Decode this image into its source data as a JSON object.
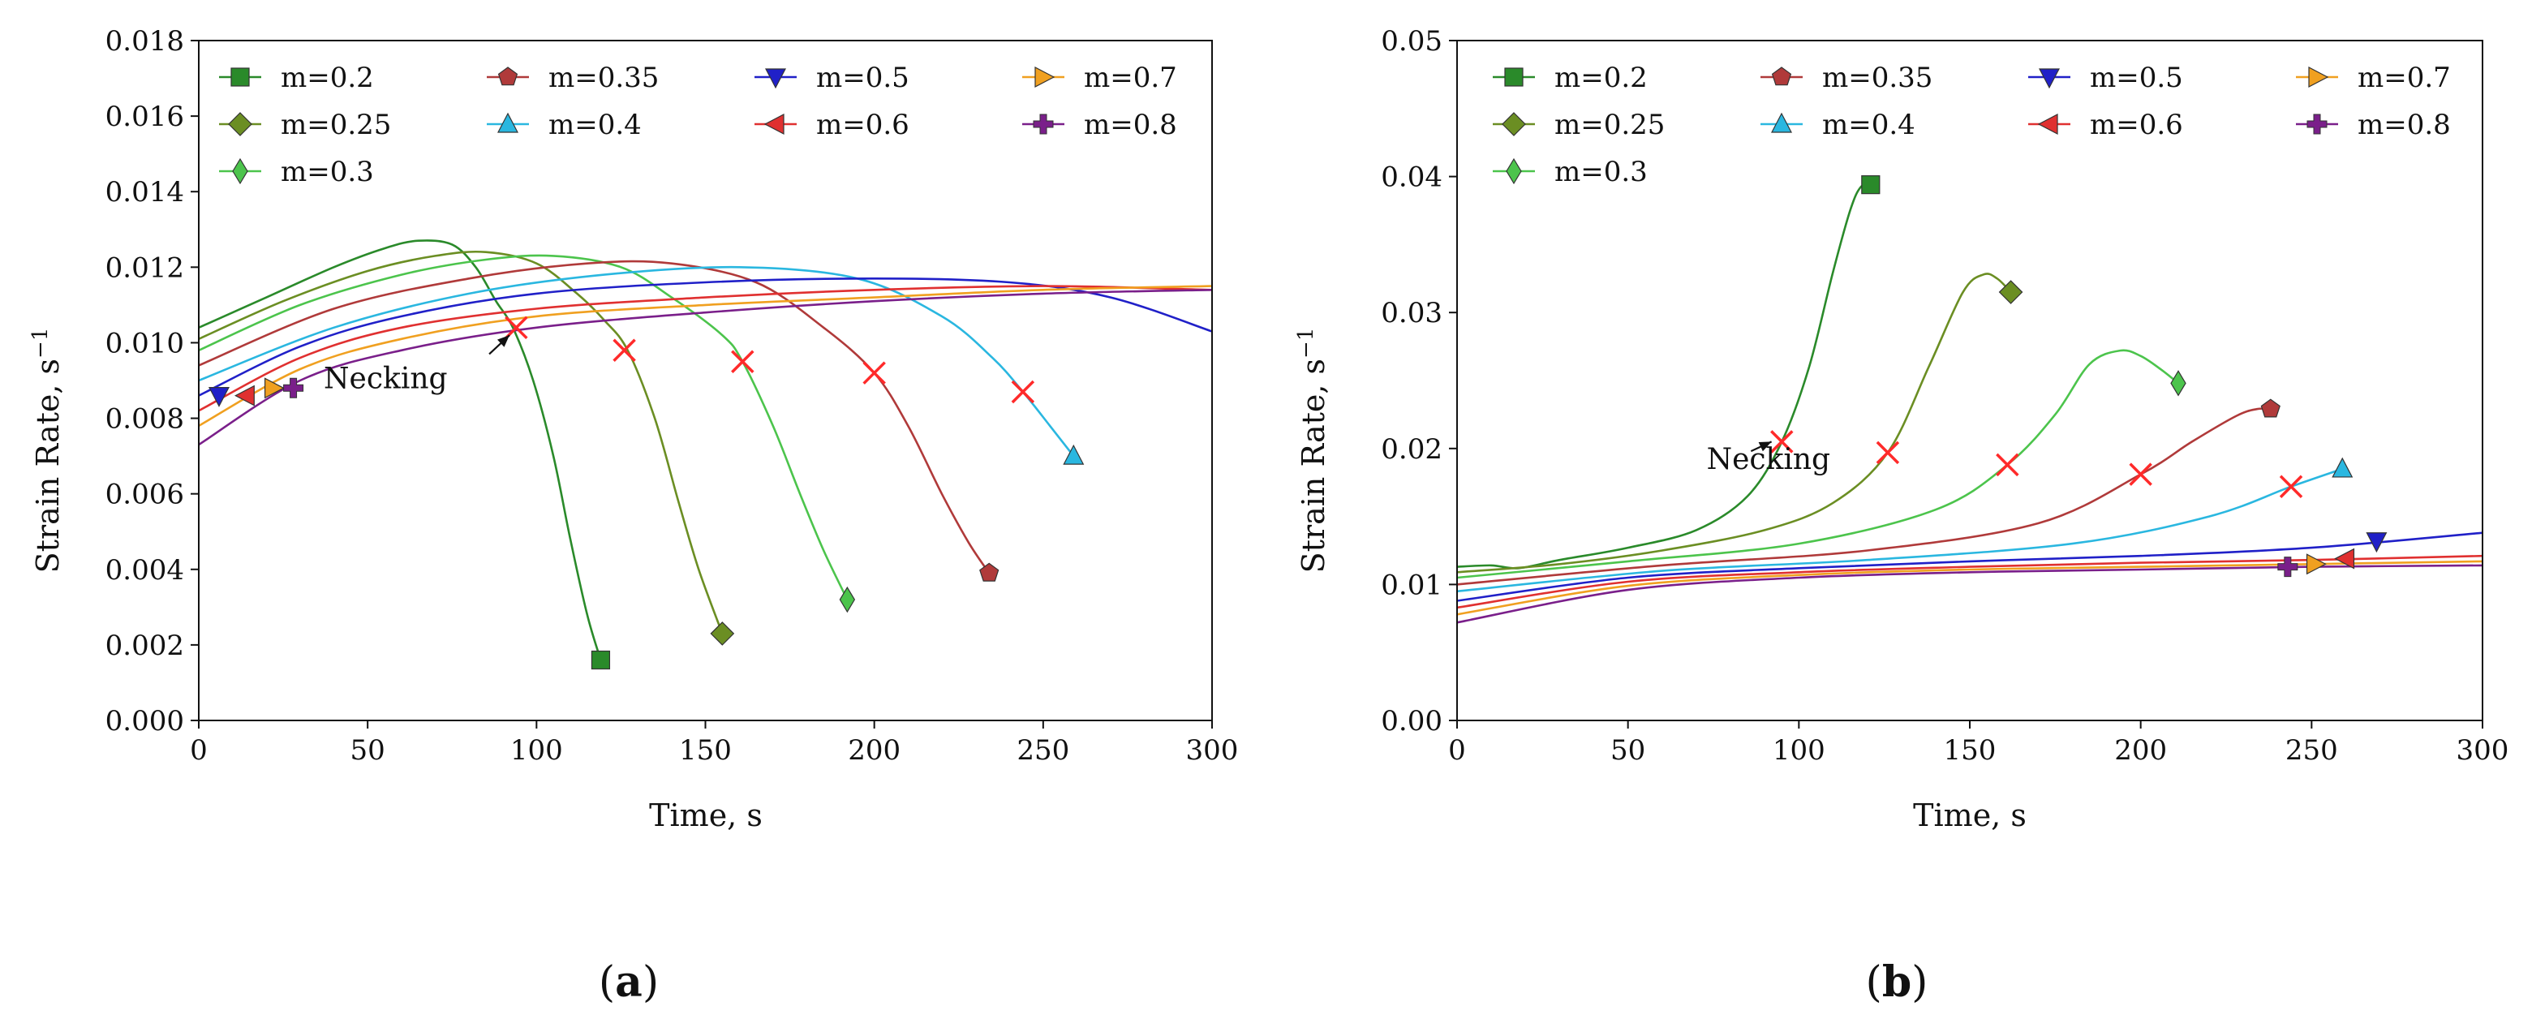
{
  "panel_labels": [
    "a",
    "b"
  ],
  "chart_data": [
    {
      "id": "a",
      "type": "line",
      "xlabel": "Time, s",
      "ylabel": "Strain Rate, s",
      "ylabel_sup": "−1",
      "xlim": [
        0,
        300
      ],
      "ylim": [
        0,
        0.018
      ],
      "xticks": [
        "0",
        "50",
        "100",
        "150",
        "200",
        "250",
        "300"
      ],
      "yticks": [
        "0.000",
        "0.002",
        "0.004",
        "0.006",
        "0.008",
        "0.010",
        "0.012",
        "0.014",
        "0.016",
        "0.018"
      ],
      "annotation": {
        "text": "Necking",
        "text_at": [
          37,
          0.0088
        ],
        "arrow_from": [
          86,
          0.0097
        ],
        "arrow_to": [
          92,
          0.0102
        ]
      },
      "series": [
        {
          "name": "m=0.2",
          "color": "#2a8a2a",
          "marker": "square",
          "points": [
            [
              0,
              0.0104
            ],
            [
              20,
              0.0112
            ],
            [
              40,
              0.012
            ],
            [
              55,
              0.0125
            ],
            [
              65,
              0.0127
            ],
            [
              75,
              0.0126
            ],
            [
              82,
              0.012
            ],
            [
              88,
              0.0111
            ],
            [
              93,
              0.0104
            ],
            [
              99,
              0.009
            ],
            [
              105,
              0.007
            ],
            [
              110,
              0.0048
            ],
            [
              115,
              0.0028
            ],
            [
              119,
              0.0016
            ]
          ],
          "end": [
            119,
            0.0016
          ],
          "necking": [
            94,
            0.0104
          ]
        },
        {
          "name": "m=0.25",
          "color": "#6b8e23",
          "marker": "diamond",
          "points": [
            [
              0,
              0.0101
            ],
            [
              25,
              0.0111
            ],
            [
              50,
              0.0119
            ],
            [
              70,
              0.0123
            ],
            [
              85,
              0.0124
            ],
            [
              100,
              0.0121
            ],
            [
              112,
              0.0113
            ],
            [
              120,
              0.0106
            ],
            [
              127,
              0.0098
            ],
            [
              135,
              0.008
            ],
            [
              142,
              0.0058
            ],
            [
              148,
              0.004
            ],
            [
              155,
              0.0023
            ]
          ],
          "end": [
            155,
            0.0023
          ],
          "necking": [
            126,
            0.0098
          ]
        },
        {
          "name": "m=0.3",
          "color": "#4cc44c",
          "marker": "thin_diamond",
          "points": [
            [
              0,
              0.0098
            ],
            [
              30,
              0.011
            ],
            [
              60,
              0.0118
            ],
            [
              85,
              0.0122
            ],
            [
              105,
              0.0123
            ],
            [
              125,
              0.012
            ],
            [
              140,
              0.0112
            ],
            [
              155,
              0.0102
            ],
            [
              161,
              0.0095
            ],
            [
              170,
              0.0078
            ],
            [
              178,
              0.006
            ],
            [
              185,
              0.0045
            ],
            [
              192,
              0.0032
            ]
          ],
          "end": [
            192,
            0.0032
          ],
          "necking": [
            161,
            0.0095
          ]
        },
        {
          "name": "m=0.35",
          "color": "#b03a3a",
          "marker": "pentagon",
          "points": [
            [
              0,
              0.0094
            ],
            [
              40,
              0.0109
            ],
            [
              80,
              0.0117
            ],
            [
              115,
              0.0121
            ],
            [
              140,
              0.0121
            ],
            [
              165,
              0.0116
            ],
            [
              185,
              0.0104
            ],
            [
              200,
              0.0092
            ],
            [
              210,
              0.0078
            ],
            [
              220,
              0.006
            ],
            [
              228,
              0.0047
            ],
            [
              234,
              0.0039
            ]
          ],
          "end": [
            234,
            0.0039
          ],
          "necking": [
            200,
            0.0092
          ]
        },
        {
          "name": "m=0.4",
          "color": "#2ab7e0",
          "marker": "triangle_up",
          "points": [
            [
              0,
              0.009
            ],
            [
              40,
              0.0104
            ],
            [
              80,
              0.0113
            ],
            [
              120,
              0.0118
            ],
            [
              160,
              0.012
            ],
            [
              195,
              0.0117
            ],
            [
              220,
              0.0107
            ],
            [
              235,
              0.0096
            ],
            [
              244,
              0.0087
            ],
            [
              252,
              0.0078
            ],
            [
              259,
              0.007
            ]
          ],
          "end": [
            259,
            0.007
          ],
          "necking": [
            244,
            0.0087
          ]
        },
        {
          "name": "m=0.5",
          "color": "#2020c8",
          "marker": "triangle_down",
          "points": [
            [
              0,
              0.0086
            ],
            [
              30,
              0.0099
            ],
            [
              60,
              0.0107
            ],
            [
              100,
              0.0113
            ],
            [
              150,
              0.0116
            ],
            [
              200,
              0.0117
            ],
            [
              240,
              0.0116
            ],
            [
              270,
              0.0112
            ],
            [
              300,
              0.0103
            ]
          ],
          "start": [
            6,
            0.0086
          ]
        },
        {
          "name": "m=0.6",
          "color": "#e03030",
          "marker": "triangle_left",
          "points": [
            [
              0,
              0.0082
            ],
            [
              30,
              0.0096
            ],
            [
              60,
              0.0104
            ],
            [
              100,
              0.0109
            ],
            [
              150,
              0.0112
            ],
            [
              200,
              0.0114
            ],
            [
              250,
              0.0115
            ],
            [
              300,
              0.0114
            ]
          ],
          "start": [
            14,
            0.0086
          ]
        },
        {
          "name": "m=0.7",
          "color": "#f0a020",
          "marker": "triangle_right",
          "points": [
            [
              0,
              0.0078
            ],
            [
              30,
              0.0093
            ],
            [
              60,
              0.0101
            ],
            [
              100,
              0.0107
            ],
            [
              150,
              0.011
            ],
            [
              200,
              0.0112
            ],
            [
              250,
              0.0114
            ],
            [
              300,
              0.0115
            ]
          ],
          "start": [
            22,
            0.0088
          ]
        },
        {
          "name": "m=0.8",
          "color": "#7a1f8a",
          "marker": "plus",
          "points": [
            [
              0,
              0.0073
            ],
            [
              30,
              0.009
            ],
            [
              60,
              0.0098
            ],
            [
              100,
              0.0104
            ],
            [
              150,
              0.0108
            ],
            [
              200,
              0.0111
            ],
            [
              250,
              0.0113
            ],
            [
              300,
              0.0114
            ]
          ],
          "start": [
            28,
            0.0088
          ]
        }
      ]
    },
    {
      "id": "b",
      "type": "line",
      "xlabel": "Time, s",
      "ylabel": "Strain Rate, s",
      "ylabel_sup": "−1",
      "xlim": [
        0,
        300
      ],
      "ylim": [
        0,
        0.05
      ],
      "xticks": [
        "0",
        "50",
        "100",
        "150",
        "200",
        "250",
        "300"
      ],
      "yticks": [
        "0.00",
        "0.01",
        "0.02",
        "0.03",
        "0.04",
        "0.05"
      ],
      "annotation": {
        "text": "Necking",
        "text_at": [
          73,
          0.0185
        ],
        "arrow_from": [
          86,
          0.0198
        ],
        "arrow_to": [
          92,
          0.0205
        ]
      },
      "series": [
        {
          "name": "m=0.2",
          "color": "#2a8a2a",
          "marker": "square",
          "points": [
            [
              0,
              0.0113
            ],
            [
              10,
              0.0114
            ],
            [
              18,
              0.0112
            ],
            [
              30,
              0.0118
            ],
            [
              50,
              0.0127
            ],
            [
              70,
              0.014
            ],
            [
              85,
              0.0165
            ],
            [
              95,
              0.0205
            ],
            [
              103,
              0.026
            ],
            [
              110,
              0.033
            ],
            [
              115,
              0.0375
            ],
            [
              118,
              0.0392
            ],
            [
              121,
              0.0394
            ]
          ],
          "end": [
            121,
            0.0394
          ],
          "necking": [
            95,
            0.0205
          ]
        },
        {
          "name": "m=0.25",
          "color": "#6b8e23",
          "marker": "diamond",
          "points": [
            [
              0,
              0.0109
            ],
            [
              30,
              0.0115
            ],
            [
              60,
              0.0125
            ],
            [
              90,
              0.014
            ],
            [
              110,
              0.016
            ],
            [
              126,
              0.0197
            ],
            [
              138,
              0.026
            ],
            [
              148,
              0.0315
            ],
            [
              154,
              0.0328
            ],
            [
              158,
              0.0325
            ],
            [
              162,
              0.0315
            ]
          ],
          "end": [
            162,
            0.0315
          ],
          "necking": [
            126,
            0.0197
          ]
        },
        {
          "name": "m=0.3",
          "color": "#4cc44c",
          "marker": "thin_diamond",
          "points": [
            [
              0,
              0.0105
            ],
            [
              50,
              0.0117
            ],
            [
              100,
              0.013
            ],
            [
              140,
              0.0155
            ],
            [
              161,
              0.0188
            ],
            [
              175,
              0.0225
            ],
            [
              185,
              0.0262
            ],
            [
              194,
              0.0272
            ],
            [
              200,
              0.0268
            ],
            [
              206,
              0.0258
            ],
            [
              211,
              0.0248
            ]
          ],
          "end": [
            211,
            0.0248
          ],
          "necking": [
            161,
            0.0188
          ]
        },
        {
          "name": "m=0.35",
          "color": "#b03a3a",
          "marker": "pentagon",
          "points": [
            [
              0,
              0.01
            ],
            [
              60,
              0.0114
            ],
            [
              120,
              0.0125
            ],
            [
              170,
              0.0145
            ],
            [
              200,
              0.0181
            ],
            [
              215,
              0.0205
            ],
            [
              228,
              0.0224
            ],
            [
              234,
              0.0229
            ],
            [
              238,
              0.0229
            ]
          ],
          "end": [
            238,
            0.0229
          ],
          "necking": [
            200,
            0.0181
          ]
        },
        {
          "name": "m=0.4",
          "color": "#2ab7e0",
          "marker": "triangle_up",
          "points": [
            [
              0,
              0.0095
            ],
            [
              60,
              0.011
            ],
            [
              120,
              0.0118
            ],
            [
              180,
              0.013
            ],
            [
              220,
              0.015
            ],
            [
              244,
              0.0172
            ],
            [
              259,
              0.0185
            ]
          ],
          "end": [
            259,
            0.0185
          ],
          "necking": [
            244,
            0.0172
          ]
        },
        {
          "name": "m=0.5",
          "color": "#2020c8",
          "marker": "triangle_down",
          "points": [
            [
              0,
              0.0088
            ],
            [
              50,
              0.0105
            ],
            [
              100,
              0.0112
            ],
            [
              150,
              0.0117
            ],
            [
              200,
              0.0121
            ],
            [
              250,
              0.0127
            ],
            [
              300,
              0.0138
            ]
          ],
          "end": [
            269,
            0.0132
          ]
        },
        {
          "name": "m=0.6",
          "color": "#e03030",
          "marker": "triangle_left",
          "points": [
            [
              0,
              0.0083
            ],
            [
              50,
              0.0102
            ],
            [
              100,
              0.0109
            ],
            [
              150,
              0.0113
            ],
            [
              200,
              0.0116
            ],
            [
              250,
              0.0118
            ],
            [
              300,
              0.0121
            ]
          ],
          "end": [
            260,
            0.0119
          ]
        },
        {
          "name": "m=0.7",
          "color": "#f0a020",
          "marker": "triangle_right",
          "points": [
            [
              0,
              0.0078
            ],
            [
              50,
              0.0099
            ],
            [
              100,
              0.0107
            ],
            [
              150,
              0.0111
            ],
            [
              200,
              0.0113
            ],
            [
              250,
              0.0115
            ],
            [
              300,
              0.0117
            ]
          ],
          "end": [
            251,
            0.0115
          ]
        },
        {
          "name": "m=0.8",
          "color": "#7a1f8a",
          "marker": "plus",
          "points": [
            [
              0,
              0.0072
            ],
            [
              50,
              0.0096
            ],
            [
              100,
              0.0105
            ],
            [
              150,
              0.0109
            ],
            [
              200,
              0.0111
            ],
            [
              250,
              0.0113
            ],
            [
              300,
              0.0114
            ]
          ],
          "end": [
            243,
            0.0113
          ]
        }
      ]
    }
  ]
}
